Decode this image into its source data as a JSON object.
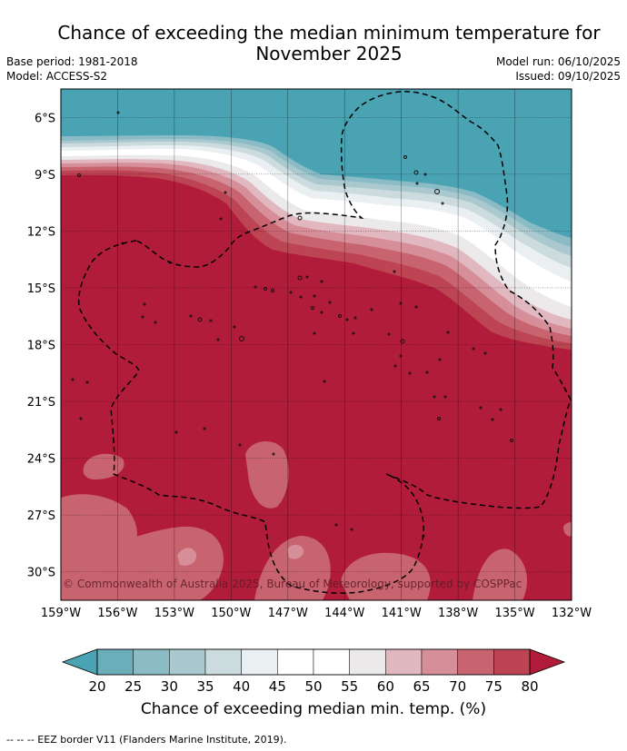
{
  "title_line1": "Chance of exceeding the median minimum temperature for",
  "title_line2": "November 2025",
  "meta": {
    "base_period": "Base period: 1981-2018",
    "model": "Model: ACCESS-S2",
    "model_run": "Model run: 06/10/2025",
    "issued": "Issued: 09/10/2025"
  },
  "map": {
    "lat_labels": [
      "6°S",
      "9°S",
      "12°S",
      "15°S",
      "18°S",
      "21°S",
      "24°S",
      "27°S",
      "30°S"
    ],
    "lon_labels": [
      "159°W",
      "156°W",
      "153°W",
      "150°W",
      "147°W",
      "144°W",
      "141°W",
      "138°W",
      "135°W",
      "132°W"
    ],
    "lat_range": [
      -31.5,
      -4.5
    ],
    "lon_range": [
      -159,
      -132
    ],
    "copyright": "© Commonwealth of Australia 2025, Bureau of Meteorology, supported by COSPPac",
    "colors": {
      "low": "#4aa3b3",
      "high": "#b11c3a"
    }
  },
  "colorbar": {
    "ticks": [
      "20",
      "25",
      "30",
      "35",
      "40",
      "45",
      "50",
      "55",
      "60",
      "65",
      "70",
      "75",
      "80"
    ],
    "colors": [
      "#6aaebb",
      "#8bbcc6",
      "#a9c9cf",
      "#ccdcde",
      "#eaf0f1",
      "#ffffff",
      "#ffffff",
      "#ebe9ea",
      "#e2b8c0",
      "#d68e99",
      "#c8646f",
      "#bd4452"
    ],
    "under_color": "#4aa3b3",
    "over_color": "#b11c3a",
    "label": "Chance of exceeding median min. temp. (%)"
  },
  "footer": "--  --  -- EEZ border V11 (Flanders Marine Institute, 2019)."
}
